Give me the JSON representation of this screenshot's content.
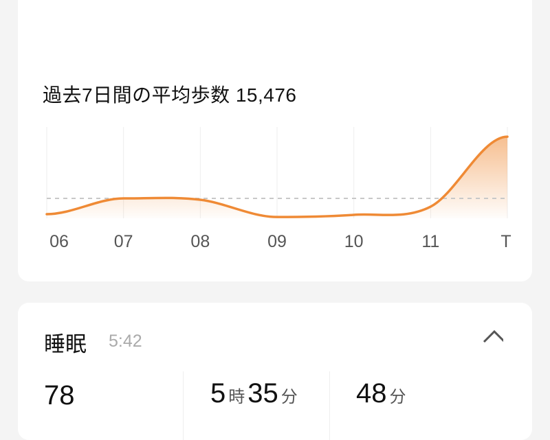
{
  "steps": {
    "average_label": "過去7日間の平均歩数 15,476",
    "accent_color": "#ef8a35"
  },
  "chart_data": {
    "type": "area",
    "categories": [
      "06",
      "07",
      "08",
      "09",
      "10",
      "11",
      "T"
    ],
    "values": [
      8500,
      15450,
      14850,
      7250,
      8200,
      11800,
      42700
    ],
    "average": 15476,
    "average_line": "dashed",
    "ylim": [
      0,
      47000
    ],
    "grid": "vertical",
    "xlabel": "",
    "ylabel": ""
  },
  "sleep": {
    "title": "睡眠",
    "time": "5:42",
    "score": "78",
    "duration_hours": "5",
    "hours_unit": "時",
    "duration_minutes": "35",
    "minutes_unit": "分",
    "third_value": "48",
    "third_unit": "分"
  }
}
